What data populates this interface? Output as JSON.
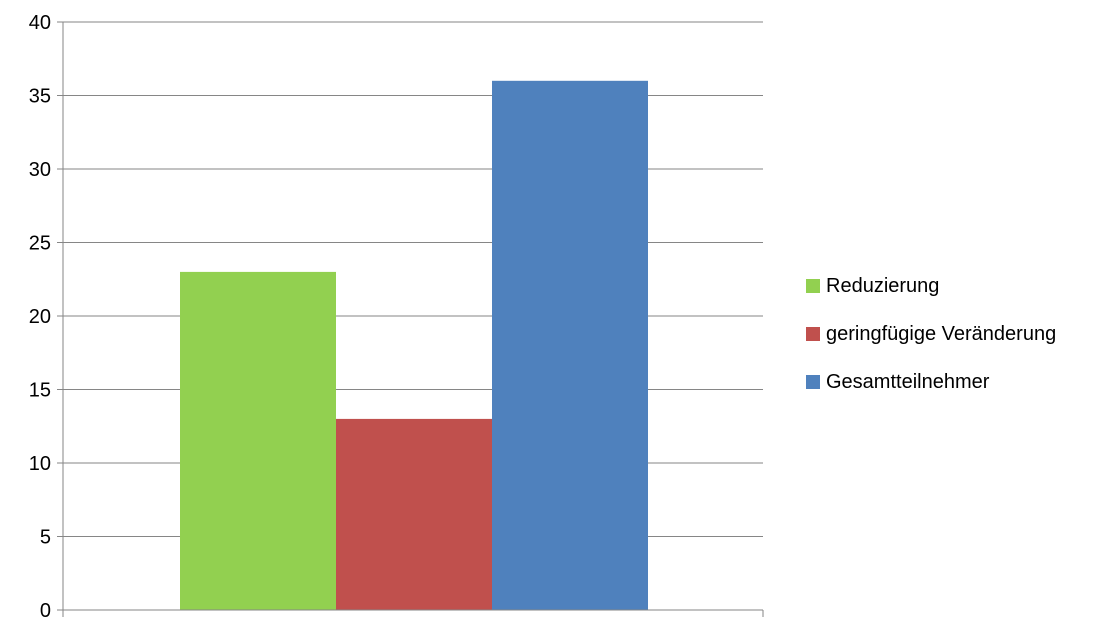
{
  "chart_data": {
    "type": "bar",
    "categories": [
      ""
    ],
    "series": [
      {
        "name": "Reduzierung",
        "values": [
          23
        ],
        "color": "#92D050"
      },
      {
        "name": "geringfügige Veränderung",
        "values": [
          13
        ],
        "color": "#C0504D"
      },
      {
        "name": "Gesamtteilnehmer",
        "values": [
          36
        ],
        "color": "#4F81BD"
      }
    ],
    "ylim": [
      0,
      40
    ],
    "yticks": [
      "0",
      "5",
      "10",
      "15",
      "20",
      "25",
      "30",
      "35",
      "40"
    ],
    "grid": true,
    "legend_position": "right"
  }
}
